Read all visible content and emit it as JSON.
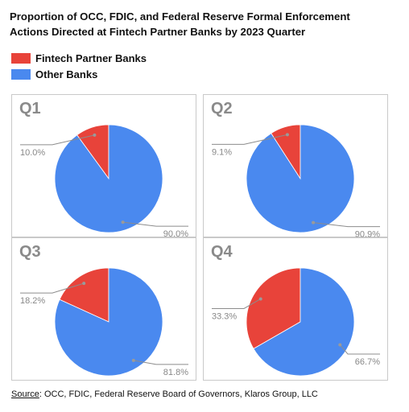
{
  "title_lines": [
    "Proportion of OCC, FDIC, and Federal Reserve Formal Enforcement",
    "Actions Directed at Fintech Partner Banks by 2023 Quarter"
  ],
  "legend": [
    {
      "label": "Fintech Partner Banks",
      "color": "#e8433a"
    },
    {
      "label": "Other Banks",
      "color": "#4a89ef"
    }
  ],
  "source": {
    "key": "Source",
    "text": ": OCC, FDIC, Federal Reserve Board of Governors, Klaros Group, LLC"
  },
  "colors": {
    "fintech": "#e8433a",
    "other": "#4a89ef",
    "leader": "#8c8c8c",
    "panel_border": "#c9c9c9"
  },
  "chart_data": [
    {
      "type": "pie",
      "title": "Q1",
      "labels": [
        "Fintech Partner Banks",
        "Other Banks"
      ],
      "values": [
        10.0,
        90.0
      ],
      "value_labels": [
        "10.0%",
        "90.0%"
      ]
    },
    {
      "type": "pie",
      "title": "Q2",
      "labels": [
        "Fintech Partner Banks",
        "Other Banks"
      ],
      "values": [
        9.1,
        90.9
      ],
      "value_labels": [
        "9.1%",
        "90.9%"
      ]
    },
    {
      "type": "pie",
      "title": "Q3",
      "labels": [
        "Fintech Partner Banks",
        "Other Banks"
      ],
      "values": [
        18.2,
        81.8
      ],
      "value_labels": [
        "18.2%",
        "81.8%"
      ]
    },
    {
      "type": "pie",
      "title": "Q4",
      "labels": [
        "Fintech Partner Banks",
        "Other Banks"
      ],
      "values": [
        33.3,
        66.7
      ],
      "value_labels": [
        "33.3%",
        "66.7%"
      ]
    }
  ]
}
